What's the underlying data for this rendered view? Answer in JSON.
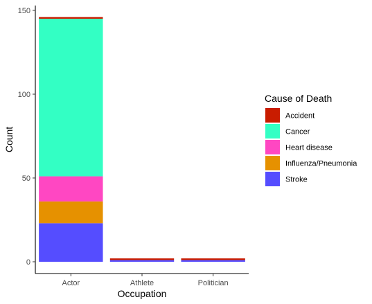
{
  "chart_data": {
    "type": "bar",
    "stacked": true,
    "categories": [
      "Actor",
      "Athlete",
      "Politician"
    ],
    "series": [
      {
        "name": "Stroke",
        "color": "#554dff",
        "values": [
          23,
          1,
          1
        ]
      },
      {
        "name": "Influenza/Pneumonia",
        "color": "#e69100",
        "values": [
          13,
          0,
          0
        ]
      },
      {
        "name": "Heart disease",
        "color": "#ff47c2",
        "values": [
          15,
          0,
          0
        ]
      },
      {
        "name": "Cancer",
        "color": "#33ffc4",
        "values": [
          94,
          0,
          0
        ]
      },
      {
        "name": "Accident",
        "color": "#c91c00",
        "values": [
          1,
          1,
          1
        ]
      }
    ],
    "xlabel": "Occupation",
    "ylabel": "Count",
    "ylim": [
      0,
      150
    ],
    "yticks": [
      0,
      50,
      100,
      150
    ],
    "grid": false,
    "legend": {
      "title": "Cause of Death",
      "position": "right",
      "order": [
        "Accident",
        "Cancer",
        "Heart disease",
        "Influenza/Pneumonia",
        "Stroke"
      ]
    }
  }
}
